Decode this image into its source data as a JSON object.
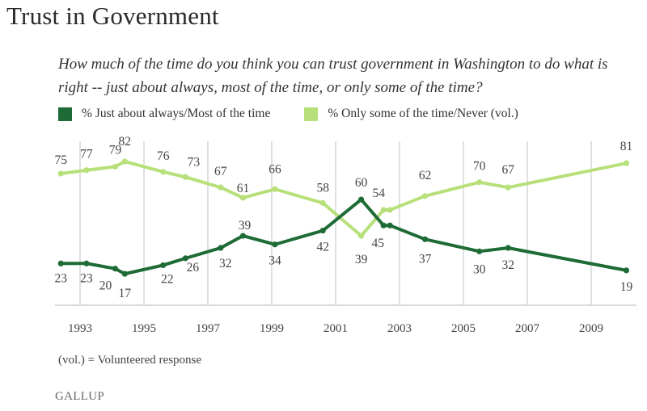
{
  "header": {
    "title": "Trust in Government",
    "question": "How much of the time do you think you can trust government in Washington to do what is right -- just about always, most of the time, or only some of the time?"
  },
  "footer": {
    "note": "(vol.) = Volunteered response",
    "brand": "GALLUP"
  },
  "chart_data": {
    "type": "line",
    "title": "Trust in Government",
    "subtitle": "How much of the time do you think you can trust government in Washington to do what is right -- just about always, most of the time, or only some of the time?",
    "xlabel": "",
    "ylabel": "",
    "x_ticks": [
      "1993",
      "1995",
      "1997",
      "1999",
      "2001",
      "2003",
      "2005",
      "2007",
      "2009"
    ],
    "xlim": [
      1992.4,
      2010.4
    ],
    "ylim": [
      0,
      100
    ],
    "grid": "vertical",
    "legend_position": "top",
    "series": [
      {
        "name": "% Just about always/Most of the time",
        "color": "#1e6b35",
        "x": [
          1992.4,
          1993.2,
          1994.1,
          1994.4,
          1995.6,
          1996.3,
          1997.4,
          1998.1,
          1999.1,
          2000.6,
          2001.8,
          2002.5,
          2002.7,
          2003.8,
          2005.5,
          2006.4,
          2010.1
        ],
        "values": [
          23,
          23,
          20,
          17,
          22,
          26,
          32,
          39,
          34,
          42,
          60,
          45,
          45,
          37,
          30,
          32,
          19
        ]
      },
      {
        "name": "% Only some of the time/Never (vol.)",
        "color": "#b7e07a",
        "x": [
          1992.4,
          1993.2,
          1994.1,
          1994.4,
          1995.6,
          1996.3,
          1997.4,
          1998.1,
          1999.1,
          2000.6,
          2001.8,
          2002.5,
          2002.7,
          2003.8,
          2005.5,
          2006.4,
          2010.1
        ],
        "values": [
          75,
          77,
          79,
          82,
          76,
          73,
          67,
          61,
          66,
          58,
          39,
          54,
          54,
          62,
          70,
          67,
          81
        ]
      }
    ],
    "labels": {
      "dark": [
        "23",
        "23",
        "20",
        "17",
        "22",
        "26",
        "32",
        "39",
        "34",
        "42",
        "60",
        "45",
        "",
        "37",
        "30",
        "32",
        "19"
      ],
      "light": [
        "75",
        "77",
        "79",
        "82",
        "76",
        "73",
        "67",
        "61",
        "66",
        "58",
        "39",
        "54",
        "",
        "62",
        "70",
        "67",
        "81"
      ]
    }
  }
}
